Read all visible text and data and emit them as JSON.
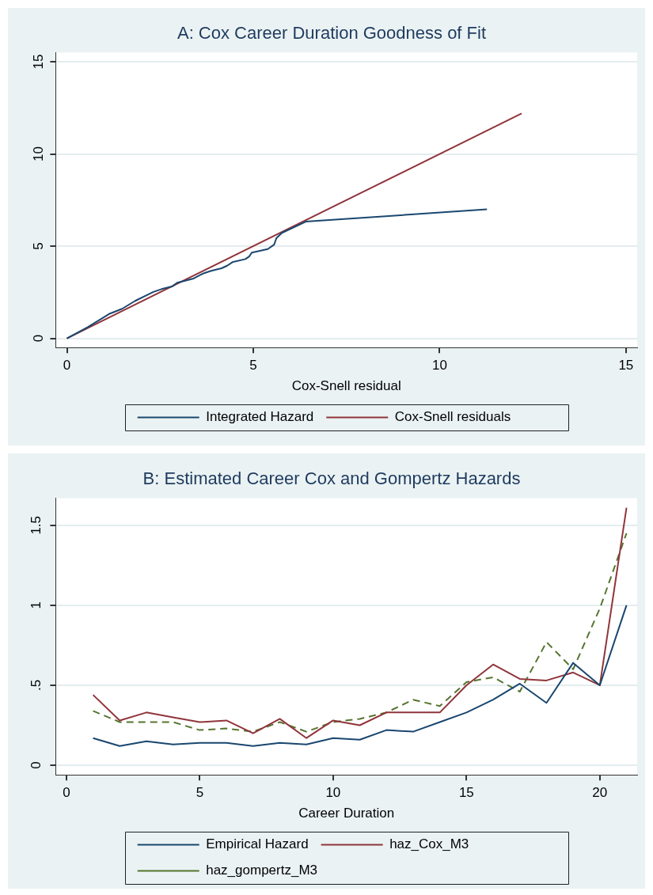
{
  "chart_data": [
    {
      "type": "line",
      "title": "A: Cox Career Duration Goodness of Fit",
      "xlabel": "Cox-Snell residual",
      "xlim": [
        -0.3,
        15.3
      ],
      "xticks": [
        0,
        5,
        10,
        15
      ],
      "ylim": [
        -0.5,
        15.5
      ],
      "yticks": [
        0,
        5,
        10,
        15
      ],
      "grid": "y",
      "legend": "bottom",
      "series": [
        {
          "name": "Integrated Hazard",
          "color": "#1a476f",
          "x": [
            0,
            0.56,
            1.13,
            1.48,
            1.83,
            2.18,
            2.32,
            2.54,
            2.82,
            2.96,
            3.38,
            3.66,
            3.87,
            4.15,
            4.3,
            4.44,
            4.79,
            4.89,
            4.96,
            5.39,
            5.56,
            5.62,
            5.77,
            6.41,
            11.27
          ],
          "values": [
            0,
            0.61,
            1.32,
            1.6,
            2.03,
            2.38,
            2.52,
            2.67,
            2.81,
            3.02,
            3.23,
            3.52,
            3.66,
            3.8,
            3.94,
            4.13,
            4.3,
            4.44,
            4.65,
            4.84,
            5.08,
            5.43,
            5.72,
            6.33,
            7.0
          ]
        },
        {
          "name": "Cox-Snell residuals",
          "color": "#90353b",
          "x": [
            0,
            12.2
          ],
          "values": [
            0,
            12.2
          ]
        }
      ]
    },
    {
      "type": "line",
      "title": "B: Estimated Career Cox and Gompertz Hazards",
      "xlabel": "Career Duration",
      "xlim": [
        -0.4,
        21.4
      ],
      "xticks": [
        0,
        5,
        10,
        15,
        20
      ],
      "ylim": [
        -0.06,
        1.67
      ],
      "yticks": [
        0,
        {
          "value": 0.5,
          "label": ".5"
        },
        1,
        1.5
      ],
      "grid": "y",
      "legend": "bottom",
      "x": [
        1,
        2,
        3,
        4,
        5,
        6,
        7,
        8,
        9,
        10,
        11,
        12,
        13,
        14,
        15,
        16,
        17,
        18,
        19,
        20,
        21
      ],
      "series": [
        {
          "name": "Empirical Hazard",
          "color": "#1a476f",
          "values": [
            0.17,
            0.12,
            0.15,
            0.13,
            0.14,
            0.14,
            0.12,
            0.14,
            0.13,
            0.17,
            0.16,
            0.22,
            0.21,
            0.27,
            0.33,
            0.41,
            0.51,
            0.39,
            0.64,
            0.5,
            1.0
          ]
        },
        {
          "name": "haz_Cox_M3",
          "color": "#90353b",
          "values": [
            0.44,
            0.28,
            0.33,
            0.3,
            0.27,
            0.28,
            0.2,
            0.29,
            0.17,
            0.28,
            0.25,
            0.33,
            0.33,
            0.33,
            0.5,
            0.63,
            0.54,
            0.53,
            0.58,
            0.5,
            1.61
          ]
        },
        {
          "name": "haz_gompertz_M3",
          "color": "#55752f",
          "line_style": "dashed",
          "values": [
            0.34,
            0.27,
            0.27,
            0.27,
            0.22,
            0.23,
            0.21,
            0.27,
            0.21,
            0.27,
            0.29,
            0.33,
            0.41,
            0.37,
            0.52,
            0.55,
            0.46,
            0.77,
            0.6,
            0.98,
            1.45
          ]
        }
      ]
    }
  ]
}
